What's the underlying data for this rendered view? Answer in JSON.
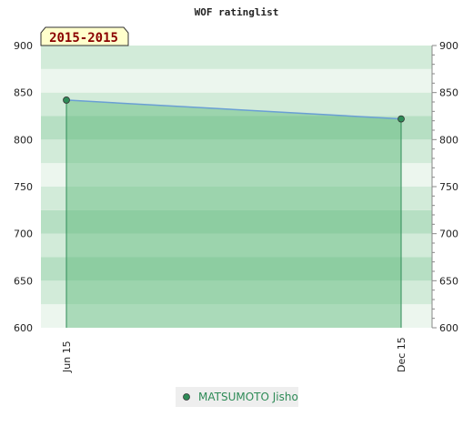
{
  "chart_data": {
    "type": "area",
    "title": "WOF ratinglist",
    "period_badge": "2015-2015",
    "ylim": [
      600,
      900
    ],
    "y_ticks": [
      600,
      650,
      700,
      750,
      800,
      850,
      900
    ],
    "y_axes": [
      "left",
      "right"
    ],
    "categories": [
      "Jun 15",
      "Dec 15"
    ],
    "series": [
      {
        "name": "MATSUMOTO Jisho",
        "values": [
          842,
          822
        ],
        "line_color": "#6a9fd4",
        "fill_color": "#5cb878",
        "marker_color": "#2e8b57"
      }
    ],
    "band_colors": [
      "#ecf6ee",
      "#d2ebd9",
      "#b6dfc3"
    ],
    "legend_position": "bottom-center",
    "grid": true
  }
}
